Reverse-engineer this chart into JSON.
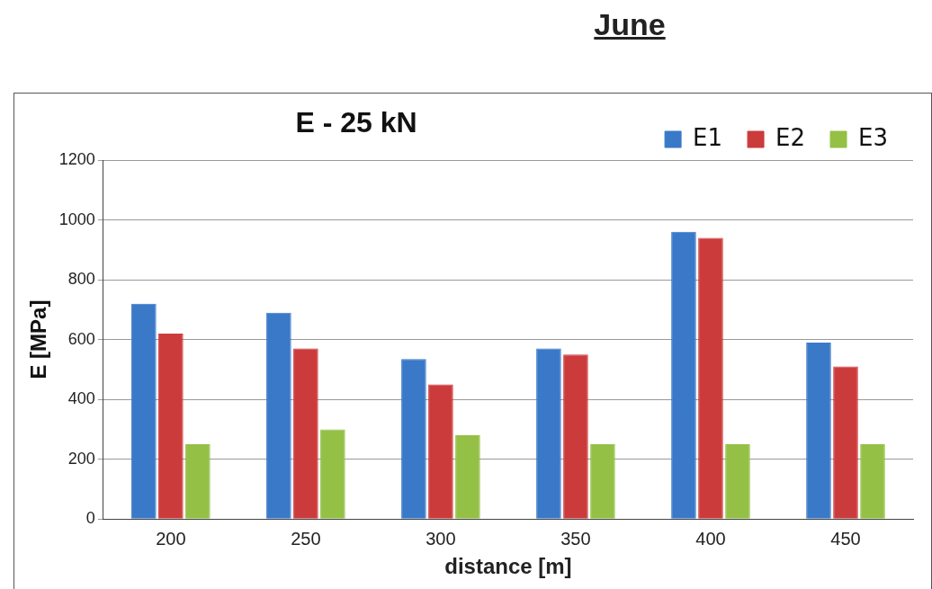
{
  "chart_data": {
    "type": "bar",
    "title": "E - 25 kN",
    "subtitle": "June",
    "xlabel": "distance [m]",
    "ylabel": "E [MPa]",
    "categories": [
      "200",
      "250",
      "300",
      "350",
      "400",
      "450"
    ],
    "series": [
      {
        "name": "E1",
        "color": "#3a78c8",
        "values": [
          720,
          690,
          535,
          570,
          960,
          590
        ]
      },
      {
        "name": "E2",
        "color": "#cc3b3b",
        "values": [
          620,
          570,
          450,
          550,
          940,
          510
        ]
      },
      {
        "name": "E3",
        "color": "#94c046",
        "values": [
          250,
          300,
          280,
          250,
          250,
          250
        ]
      }
    ],
    "ylim": [
      0,
      1200
    ],
    "yticks": [
      0,
      200,
      400,
      600,
      800,
      1000,
      1200
    ],
    "grid": "y",
    "legend": "top right"
  }
}
